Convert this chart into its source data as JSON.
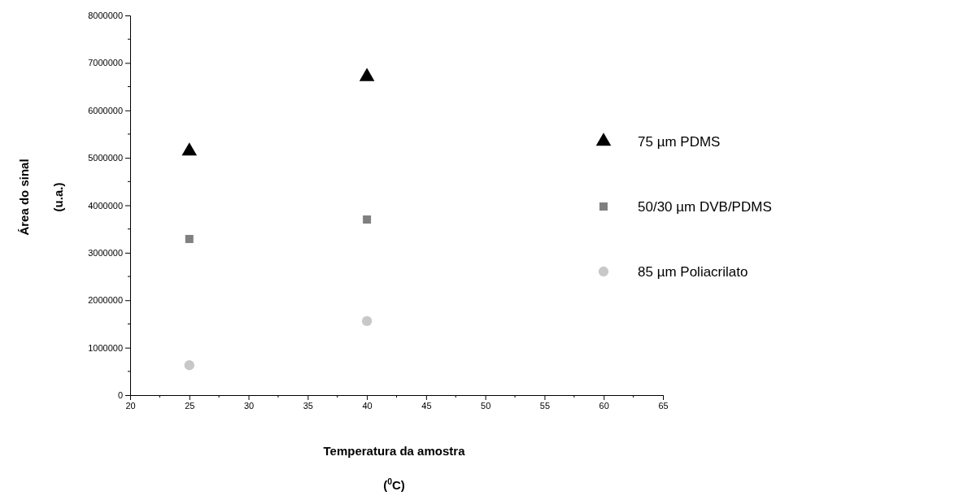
{
  "chart_data": {
    "type": "scatter",
    "xlabel": "Temperatura da amostra\n($^{0}$C)",
    "ylabel": "Área do sinal\n(u.a.)",
    "x": [
      25,
      40
    ],
    "series": [
      {
        "name": "75 µm PDMS",
        "color": "#000000",
        "marker": "triangle",
        "values": [
          5140000,
          6710000
        ]
      },
      {
        "name": "50/30 µm DVB/PDMS",
        "color": "#808080",
        "marker": "square",
        "values": [
          3290000,
          3700000
        ]
      },
      {
        "name": "85 µm Poliacrilato",
        "color": "#c8c8c8",
        "marker": "circle",
        "values": [
          630000,
          1560000
        ]
      }
    ],
    "xlim": [
      20,
      65
    ],
    "xticks": [
      20,
      25,
      30,
      35,
      40,
      45,
      50,
      55,
      60,
      65
    ],
    "ylim": [
      0,
      8000000
    ],
    "yticks": [
      0,
      1000000,
      2000000,
      3000000,
      4000000,
      5000000,
      6000000,
      7000000,
      8000000
    ],
    "grid": false,
    "legend": "right"
  }
}
